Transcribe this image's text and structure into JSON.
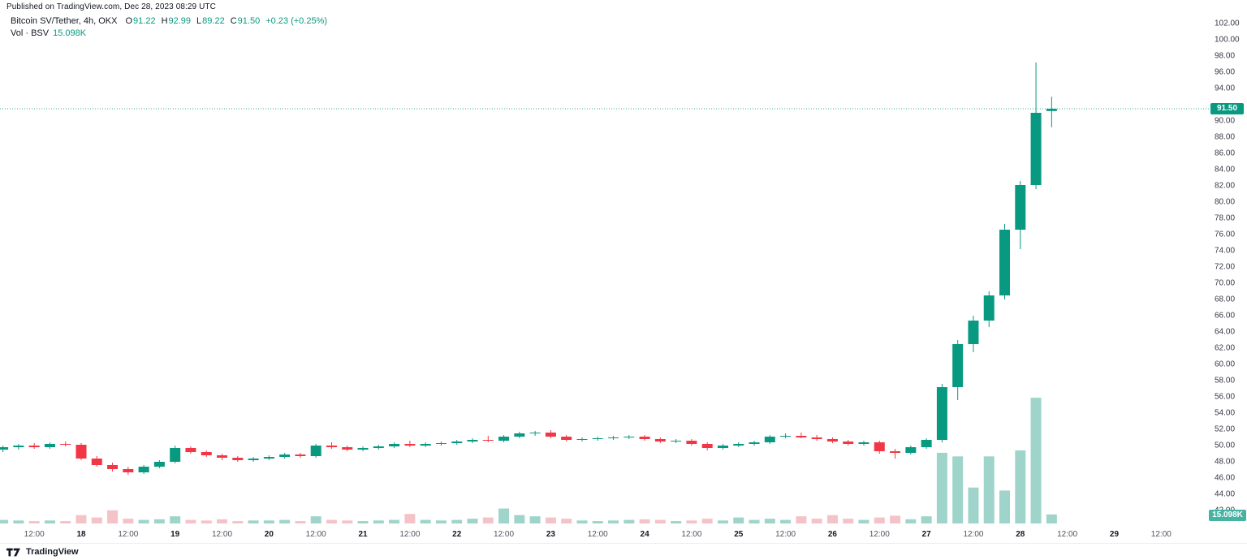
{
  "header": {
    "published": "Published on TradingView.com, Dec 28, 2023 08:29 UTC"
  },
  "legend": {
    "symbol": "Bitcoin SV/Tether, 4h, OKX",
    "open_label": "O",
    "open": "91.22",
    "high_label": "H",
    "high": "92.99",
    "low_label": "L",
    "low": "89.22",
    "close_label": "C",
    "close": "91.50",
    "change": "+0.23 (+0.25%)",
    "volume_label": "Vol · BSV",
    "volume": "15.098K"
  },
  "badges": {
    "last_price": "91.50",
    "last_volume": "15.098K"
  },
  "footer": {
    "brand": "TradingView"
  },
  "colors": {
    "up": "#089981",
    "down": "#F23645",
    "vol_up": "#9fd4cb",
    "vol_down": "#f4c3c8",
    "price_badge_bg": "#089981",
    "vol_badge_bg": "#45b3a2",
    "axis_text": "#363a45",
    "time_text": "#50535e",
    "text": "#131722",
    "footer_border": "#eceef2"
  },
  "chart_data": {
    "type": "candlestick",
    "symbol": "Bitcoin SV / Tether",
    "exchange": "OKX",
    "interval": "4h",
    "volume_series": "Vol · BSV",
    "start_time": "Dec 17 04:00",
    "interval_hours": 4,
    "last": {
      "open": 91.22,
      "high": 92.99,
      "low": 89.22,
      "close": 91.5,
      "change": 0.23,
      "change_pct": 0.25,
      "volume_label": "15.098K"
    },
    "price_axis": {
      "min": 42,
      "max": 102,
      "step": 2,
      "ticks": [
        102,
        100,
        98,
        96,
        94,
        92,
        90,
        88,
        86,
        84,
        82,
        80,
        78,
        76,
        74,
        72,
        70,
        68,
        66,
        64,
        62,
        60,
        58,
        56,
        54,
        52,
        50,
        48,
        46,
        44,
        42
      ]
    },
    "time_axis": {
      "ticks": [
        {
          "i": 2,
          "label": "12:00",
          "major": false
        },
        {
          "i": 5,
          "label": "18",
          "major": true
        },
        {
          "i": 8,
          "label": "12:00",
          "major": false
        },
        {
          "i": 11,
          "label": "19",
          "major": true
        },
        {
          "i": 14,
          "label": "12:00",
          "major": false
        },
        {
          "i": 17,
          "label": "20",
          "major": true
        },
        {
          "i": 20,
          "label": "12:00",
          "major": false
        },
        {
          "i": 23,
          "label": "21",
          "major": true
        },
        {
          "i": 26,
          "label": "12:00",
          "major": false
        },
        {
          "i": 29,
          "label": "22",
          "major": true
        },
        {
          "i": 32,
          "label": "12:00",
          "major": false
        },
        {
          "i": 35,
          "label": "23",
          "major": true
        },
        {
          "i": 38,
          "label": "12:00",
          "major": false
        },
        {
          "i": 41,
          "label": "24",
          "major": true
        },
        {
          "i": 44,
          "label": "12:00",
          "major": false
        },
        {
          "i": 47,
          "label": "25",
          "major": true
        },
        {
          "i": 50,
          "label": "12:00",
          "major": false
        },
        {
          "i": 53,
          "label": "26",
          "major": true
        },
        {
          "i": 56,
          "label": "12:00",
          "major": false
        },
        {
          "i": 59,
          "label": "27",
          "major": true
        },
        {
          "i": 62,
          "label": "12:00",
          "major": false
        },
        {
          "i": 65,
          "label": "28",
          "major": true
        },
        {
          "i": 68,
          "label": "12:00",
          "major": false
        },
        {
          "i": 71,
          "label": "29",
          "major": true
        },
        {
          "i": 74,
          "label": "12:00",
          "major": false
        }
      ]
    },
    "volume_unit": "K",
    "ohlcv_order": [
      "open",
      "high",
      "low",
      "close",
      "volume_k"
    ],
    "candles": [
      [
        49.5,
        50.0,
        49.2,
        49.8,
        6
      ],
      [
        49.8,
        50.2,
        49.5,
        50.0,
        5
      ],
      [
        50.0,
        50.3,
        49.6,
        49.8,
        4
      ],
      [
        49.8,
        50.4,
        49.6,
        50.2,
        5
      ],
      [
        50.2,
        50.5,
        49.9,
        50.1,
        4
      ],
      [
        50.1,
        50.3,
        48.2,
        48.4,
        14
      ],
      [
        48.4,
        48.7,
        47.4,
        47.6,
        10
      ],
      [
        47.6,
        47.9,
        46.8,
        47.1,
        22
      ],
      [
        47.1,
        47.4,
        46.4,
        46.7,
        8
      ],
      [
        46.7,
        47.6,
        46.5,
        47.4,
        6
      ],
      [
        47.4,
        48.2,
        47.2,
        48.0,
        7
      ],
      [
        48.0,
        50.0,
        47.8,
        49.7,
        12
      ],
      [
        49.7,
        49.9,
        49.0,
        49.2,
        6
      ],
      [
        49.2,
        49.4,
        48.6,
        48.8,
        5
      ],
      [
        48.8,
        49.0,
        48.2,
        48.5,
        7
      ],
      [
        48.5,
        48.7,
        48.0,
        48.2,
        4
      ],
      [
        48.2,
        48.6,
        48.0,
        48.4,
        5
      ],
      [
        48.4,
        48.8,
        48.2,
        48.6,
        5
      ],
      [
        48.6,
        49.1,
        48.4,
        48.9,
        6
      ],
      [
        48.9,
        49.1,
        48.5,
        48.7,
        4
      ],
      [
        48.7,
        50.2,
        48.5,
        50.0,
        12
      ],
      [
        50.0,
        50.4,
        49.6,
        49.8,
        6
      ],
      [
        49.8,
        50.0,
        49.3,
        49.5,
        5
      ],
      [
        49.5,
        49.9,
        49.3,
        49.7,
        4
      ],
      [
        49.7,
        50.1,
        49.5,
        49.9,
        5
      ],
      [
        49.9,
        50.4,
        49.7,
        50.2,
        6
      ],
      [
        50.2,
        50.6,
        49.8,
        50.0,
        16
      ],
      [
        50.0,
        50.4,
        49.8,
        50.2,
        6
      ],
      [
        50.2,
        50.5,
        50.0,
        50.3,
        5
      ],
      [
        50.3,
        50.7,
        50.1,
        50.5,
        6
      ],
      [
        50.5,
        50.9,
        50.3,
        50.7,
        8
      ],
      [
        50.7,
        51.2,
        50.4,
        50.6,
        10
      ],
      [
        50.6,
        51.3,
        50.4,
        51.1,
        25
      ],
      [
        51.1,
        51.7,
        50.9,
        51.5,
        14
      ],
      [
        51.5,
        51.8,
        51.2,
        51.6,
        12
      ],
      [
        51.6,
        51.9,
        50.9,
        51.1,
        10
      ],
      [
        51.1,
        51.3,
        50.5,
        50.7,
        8
      ],
      [
        50.7,
        51.0,
        50.5,
        50.8,
        5
      ],
      [
        50.8,
        51.1,
        50.6,
        50.9,
        4
      ],
      [
        50.9,
        51.2,
        50.7,
        51.0,
        5
      ],
      [
        51.0,
        51.3,
        50.8,
        51.1,
        6
      ],
      [
        51.1,
        51.3,
        50.6,
        50.8,
        7
      ],
      [
        50.8,
        51.0,
        50.3,
        50.5,
        6
      ],
      [
        50.5,
        50.8,
        50.3,
        50.6,
        4
      ],
      [
        50.6,
        50.8,
        50.0,
        50.2,
        5
      ],
      [
        50.2,
        50.4,
        49.4,
        49.7,
        8
      ],
      [
        49.7,
        50.2,
        49.5,
        50.0,
        5
      ],
      [
        50.0,
        50.4,
        49.8,
        50.2,
        10
      ],
      [
        50.2,
        50.6,
        50.0,
        50.4,
        6
      ],
      [
        50.4,
        51.3,
        50.2,
        51.1,
        8
      ],
      [
        51.1,
        51.5,
        50.9,
        51.2,
        6
      ],
      [
        51.2,
        51.6,
        50.9,
        51.0,
        12
      ],
      [
        51.0,
        51.3,
        50.6,
        50.8,
        8
      ],
      [
        50.8,
        51.0,
        50.3,
        50.5,
        14
      ],
      [
        50.5,
        50.7,
        50.0,
        50.2,
        8
      ],
      [
        50.2,
        50.6,
        50.0,
        50.4,
        6
      ],
      [
        50.4,
        50.6,
        49.0,
        49.3,
        10
      ],
      [
        49.3,
        49.6,
        48.4,
        49.1,
        13
      ],
      [
        49.1,
        50.0,
        48.9,
        49.8,
        7
      ],
      [
        49.8,
        50.9,
        49.6,
        50.7,
        12
      ],
      [
        50.7,
        57.6,
        50.4,
        57.2,
        118
      ],
      [
        57.2,
        63.0,
        55.6,
        62.5,
        112
      ],
      [
        62.5,
        66.0,
        61.5,
        65.4,
        60
      ],
      [
        65.4,
        69.0,
        64.6,
        68.5,
        112
      ],
      [
        68.5,
        77.3,
        68.0,
        76.6,
        55
      ],
      [
        76.6,
        82.6,
        74.2,
        82.1,
        122
      ],
      [
        82.1,
        97.2,
        81.6,
        91.0,
        210
      ],
      [
        91.22,
        92.99,
        89.22,
        91.5,
        15.098
      ]
    ]
  }
}
